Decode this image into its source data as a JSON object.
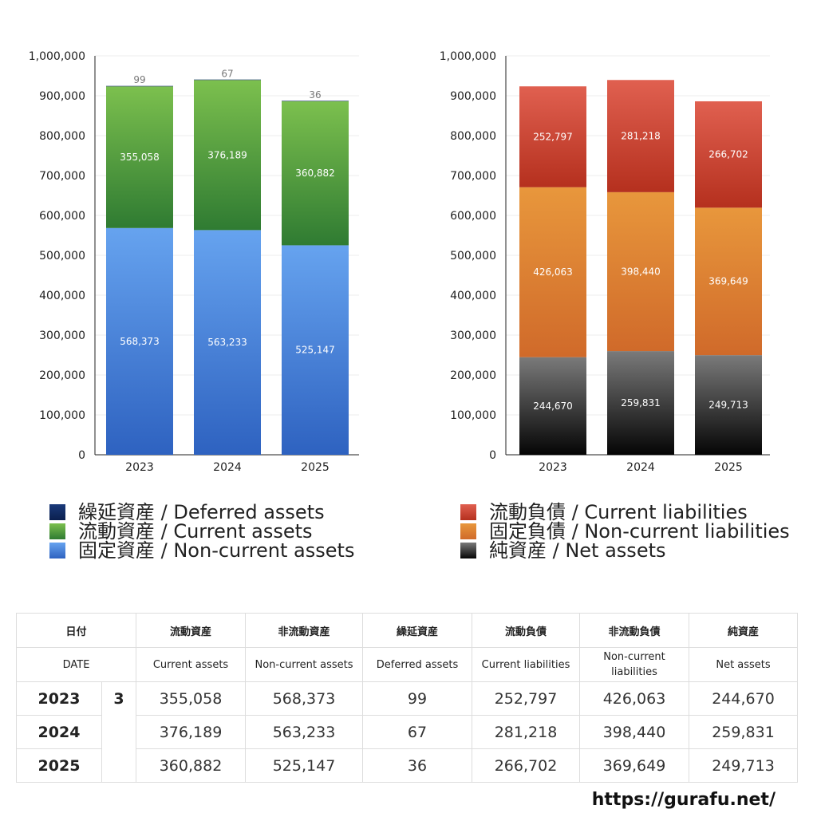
{
  "chart_data": [
    {
      "type": "bar",
      "stacked": true,
      "categories": [
        "2023",
        "2024",
        "2025"
      ],
      "ylim": [
        0,
        1000000
      ],
      "yticks": [
        "0",
        "100,000",
        "200,000",
        "300,000",
        "400,000",
        "500,000",
        "600,000",
        "700,000",
        "800,000",
        "900,000",
        "1,000,000"
      ],
      "series": [
        {
          "name": "固定資産 / Non-current assets",
          "values": [
            568373,
            563233,
            525147
          ],
          "labels": [
            "568,373",
            "563,233",
            "525,147"
          ],
          "color_top": "#66a3ef",
          "color_bottom": "#2e62c0"
        },
        {
          "name": "流動資産 / Current assets",
          "values": [
            355058,
            376189,
            360882
          ],
          "labels": [
            "355,058",
            "376,189",
            "360,882"
          ],
          "color_top": "#7cc04e",
          "color_bottom": "#2f7b32"
        },
        {
          "name": "繰延資産 / Deferred assets",
          "values": [
            99,
            67,
            36
          ],
          "labels": [
            "99",
            "67",
            "36"
          ],
          "color_top": "#1a3a7a",
          "color_bottom": "#0b1f4e"
        }
      ],
      "grid": true
    },
    {
      "type": "bar",
      "stacked": true,
      "categories": [
        "2023",
        "2024",
        "2025"
      ],
      "ylim": [
        0,
        1000000
      ],
      "yticks": [
        "0",
        "100,000",
        "200,000",
        "300,000",
        "400,000",
        "500,000",
        "600,000",
        "700,000",
        "800,000",
        "900,000",
        "1,000,000"
      ],
      "series": [
        {
          "name": "純資産 / Net assets",
          "values": [
            244670,
            259831,
            249713
          ],
          "labels": [
            "244,670",
            "259,831",
            "249,713"
          ],
          "color_top": "#7a7a7a",
          "color_bottom": "#050505"
        },
        {
          "name": "固定負債 / Non-current liabilities",
          "values": [
            426063,
            398440,
            369649
          ],
          "labels": [
            "426,063",
            "398,440",
            "369,649"
          ],
          "color_top": "#e8973c",
          "color_bottom": "#d06a2a"
        },
        {
          "name": "流動負債 / Current liabilities",
          "values": [
            252797,
            281218,
            266702
          ],
          "labels": [
            "252,797",
            "281,218",
            "266,702"
          ],
          "color_top": "#e06050",
          "color_bottom": "#b5301e"
        }
      ],
      "grid": true
    }
  ],
  "legends": {
    "left": [
      {
        "label": "繰延資産 / Deferred assets",
        "color_top": "#1a3a7a",
        "color_bottom": "#0b1f4e"
      },
      {
        "label": "流動資産 / Current assets",
        "color_top": "#7cc04e",
        "color_bottom": "#2f7b32"
      },
      {
        "label": "固定資産 / Non-current assets",
        "color_top": "#66a3ef",
        "color_bottom": "#2e62c0"
      }
    ],
    "right": [
      {
        "label": "流動負債 / Current liabilities",
        "color_top": "#e06050",
        "color_bottom": "#b5301e"
      },
      {
        "label": "固定負債 / Non-current liabilities",
        "color_top": "#e8973c",
        "color_bottom": "#d06a2a"
      },
      {
        "label": "純資産 / Net assets",
        "color_top": "#7a7a7a",
        "color_bottom": "#050505"
      }
    ]
  },
  "table": {
    "header_jp": {
      "date": "日付",
      "current_assets": "流動資産",
      "noncurrent_assets": "非流動資産",
      "deferred_assets": "繰延資産",
      "current_liabilities": "流動負債",
      "noncurrent_liabilities": "非流動負債",
      "net_assets": "純資産"
    },
    "header_en": {
      "date": "DATE",
      "current_assets": "Current assets",
      "noncurrent_assets": "Non-current assets",
      "deferred_assets": "Deferred assets",
      "current_liabilities": "Current liabilities",
      "noncurrent_liabilities": "Non-current liabilities",
      "net_assets": "Net assets"
    },
    "rows": [
      {
        "year": "2023",
        "month": "3",
        "current_assets": "355,058",
        "noncurrent_assets": "568,373",
        "deferred_assets": "99",
        "current_liabilities": "252,797",
        "noncurrent_liabilities": "426,063",
        "net_assets": "244,670"
      },
      {
        "year": "2024",
        "month": "3",
        "current_assets": "376,189",
        "noncurrent_assets": "563,233",
        "deferred_assets": "67",
        "current_liabilities": "281,218",
        "noncurrent_liabilities": "398,440",
        "net_assets": "259,831"
      },
      {
        "year": "2025",
        "month": "3",
        "current_assets": "360,882",
        "noncurrent_assets": "525,147",
        "deferred_assets": "36",
        "current_liabilities": "266,702",
        "noncurrent_liabilities": "369,649",
        "net_assets": "249,713"
      }
    ]
  },
  "footer": {
    "url": "https://gurafu.net/"
  }
}
